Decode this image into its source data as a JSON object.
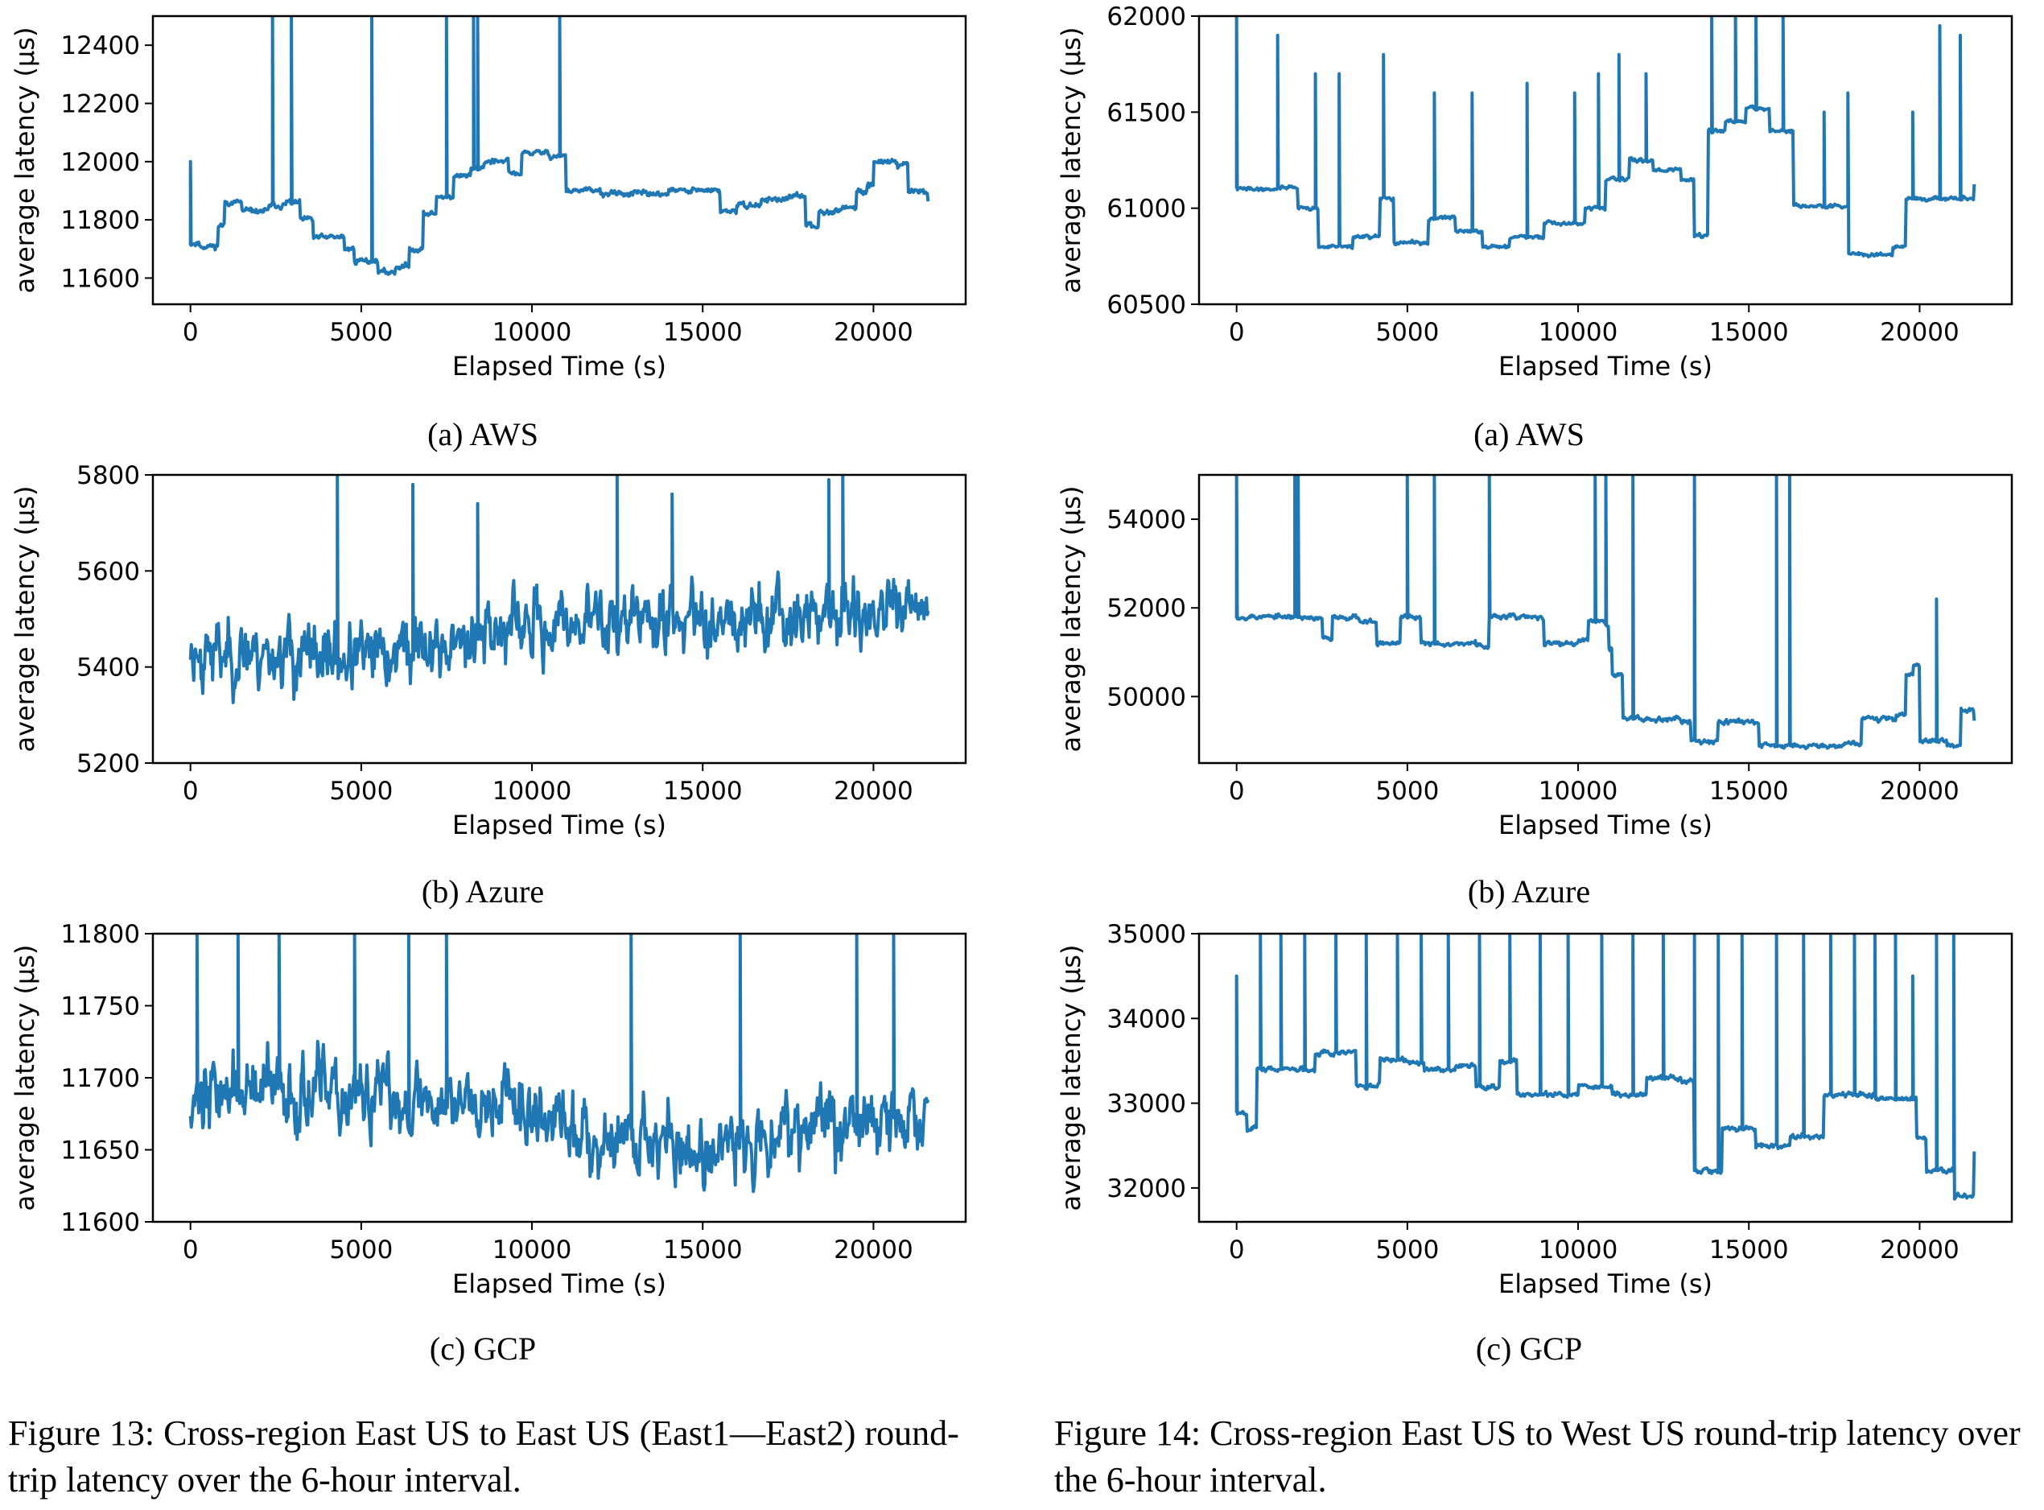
{
  "figures": [
    {
      "caption": "Figure 13: Cross-region East US to East US (East1—East2) round-trip latency over the 6-hour interval.",
      "panels": [
        {
          "subcaption": "(a) AWS"
        },
        {
          "subcaption": "(b) Azure"
        },
        {
          "subcaption": "(c) GCP"
        }
      ]
    },
    {
      "caption": "Figure 14: Cross-region East US to West US round-trip latency over the 6-hour interval.",
      "panels": [
        {
          "subcaption": "(a) AWS"
        },
        {
          "subcaption": "(b) Azure"
        },
        {
          "subcaption": "(c) GCP"
        }
      ]
    }
  ],
  "chart_data": [
    {
      "type": "line",
      "id": "f13a",
      "color": "#1f77b4",
      "xlabel": "Elapsed Time (s)",
      "ylabel": "average latency (µs)",
      "xlim": [
        -1100,
        22700
      ],
      "ylim": [
        11510,
        12500
      ],
      "xticks": [
        0,
        5000,
        10000,
        15000,
        20000
      ],
      "yticks": [
        11600,
        11800,
        12000,
        12200,
        12400
      ],
      "noise": 8,
      "seed": 11,
      "segments": [
        [
          0,
          11720
        ],
        [
          250,
          11710
        ],
        [
          800,
          11780
        ],
        [
          1000,
          11860
        ],
        [
          1500,
          11830
        ],
        [
          2300,
          11850
        ],
        [
          2800,
          11860
        ],
        [
          3200,
          11800
        ],
        [
          3600,
          11740
        ],
        [
          4200,
          11740
        ],
        [
          4500,
          11700
        ],
        [
          4800,
          11660
        ],
        [
          5500,
          11620
        ],
        [
          6000,
          11640
        ],
        [
          6400,
          11700
        ],
        [
          6800,
          11820
        ],
        [
          7200,
          11880
        ],
        [
          7700,
          11950
        ],
        [
          8200,
          11980
        ],
        [
          8600,
          12000
        ],
        [
          9300,
          11960
        ],
        [
          9700,
          12030
        ],
        [
          10500,
          12020
        ],
        [
          11000,
          11900
        ],
        [
          12000,
          11890
        ],
        [
          13000,
          11890
        ],
        [
          14000,
          11900
        ],
        [
          14800,
          11900
        ],
        [
          15500,
          11830
        ],
        [
          16000,
          11850
        ],
        [
          16700,
          11870
        ],
        [
          17500,
          11880
        ],
        [
          18000,
          11780
        ],
        [
          18400,
          11830
        ],
        [
          19000,
          11840
        ],
        [
          19500,
          11900
        ],
        [
          19800,
          11920
        ],
        [
          20000,
          12000
        ],
        [
          20700,
          11990
        ],
        [
          21000,
          11900
        ],
        [
          21600,
          11870
        ]
      ],
      "spikes": [
        [
          0,
          12000
        ],
        [
          2400,
          12500
        ],
        [
          2950,
          12500
        ],
        [
          5300,
          12500
        ],
        [
          7500,
          12500
        ],
        [
          8300,
          12500
        ],
        [
          8400,
          12500
        ],
        [
          10800,
          12500
        ]
      ]
    },
    {
      "type": "line",
      "id": "f13b",
      "color": "#1f77b4",
      "xlabel": "Elapsed Time (s)",
      "ylabel": "average latency (µs)",
      "xlim": [
        -1100,
        22700
      ],
      "ylim": [
        5200,
        5800
      ],
      "xticks": [
        0,
        5000,
        10000,
        15000,
        20000
      ],
      "yticks": [
        5200,
        5400,
        5600,
        5800
      ],
      "noise": 55,
      "seed": 23,
      "segments": [
        [
          0,
          5430
        ],
        [
          3000,
          5420
        ],
        [
          6000,
          5440
        ],
        [
          8000,
          5480
        ],
        [
          11000,
          5500
        ],
        [
          15000,
          5510
        ],
        [
          18000,
          5510
        ],
        [
          21600,
          5500
        ]
      ],
      "spikes": [
        [
          4300,
          5800
        ],
        [
          6500,
          5780
        ],
        [
          8400,
          5740
        ],
        [
          12500,
          5800
        ],
        [
          14100,
          5760
        ],
        [
          18700,
          5790
        ],
        [
          19100,
          5800
        ]
      ]
    },
    {
      "type": "line",
      "id": "f13c",
      "color": "#1f77b4",
      "xlabel": "Elapsed Time (s)",
      "ylabel": "average latency (µs)",
      "xlim": [
        -1100,
        22700
      ],
      "ylim": [
        11600,
        11800
      ],
      "xticks": [
        0,
        5000,
        10000,
        15000,
        20000
      ],
      "yticks": [
        11600,
        11650,
        11700,
        11750,
        11800
      ],
      "noise": 20,
      "seed": 37,
      "segments": [
        [
          0,
          11690
        ],
        [
          4000,
          11685
        ],
        [
          8000,
          11690
        ],
        [
          9500,
          11670
        ],
        [
          11000,
          11660
        ],
        [
          14000,
          11650
        ],
        [
          15800,
          11655
        ],
        [
          17000,
          11670
        ],
        [
          21600,
          11680
        ]
      ],
      "spikes": [
        [
          200,
          11800
        ],
        [
          1400,
          11800
        ],
        [
          2600,
          11800
        ],
        [
          4800,
          11800
        ],
        [
          6400,
          11800
        ],
        [
          7500,
          11800
        ],
        [
          12900,
          11800
        ],
        [
          16100,
          11800
        ],
        [
          19500,
          11800
        ],
        [
          20600,
          11800
        ]
      ]
    },
    {
      "type": "line",
      "id": "f14a",
      "color": "#1f77b4",
      "xlabel": "Elapsed Time (s)",
      "ylabel": "average latency (µs)",
      "xlim": [
        -1100,
        22700
      ],
      "ylim": [
        60500,
        62000
      ],
      "xticks": [
        0,
        5000,
        10000,
        15000,
        20000
      ],
      "yticks": [
        60500,
        61000,
        61500,
        62000
      ],
      "noise": 8,
      "seed": 41,
      "segments": [
        [
          0,
          61100
        ],
        [
          1200,
          61110
        ],
        [
          1800,
          61000
        ],
        [
          2400,
          60800
        ],
        [
          3400,
          60850
        ],
        [
          4200,
          61050
        ],
        [
          4600,
          60820
        ],
        [
          5600,
          60950
        ],
        [
          6400,
          60880
        ],
        [
          7200,
          60800
        ],
        [
          8000,
          60850
        ],
        [
          9000,
          60920
        ],
        [
          10200,
          61000
        ],
        [
          10800,
          61150
        ],
        [
          11500,
          61250
        ],
        [
          12200,
          61200
        ],
        [
          13000,
          61150
        ],
        [
          13400,
          60860
        ],
        [
          13800,
          61400
        ],
        [
          14300,
          61450
        ],
        [
          14900,
          61520
        ],
        [
          15600,
          61400
        ],
        [
          16300,
          61010
        ],
        [
          17700,
          61010
        ],
        [
          17900,
          60760
        ],
        [
          19200,
          60800
        ],
        [
          19600,
          61050
        ],
        [
          21600,
          61130
        ]
      ],
      "spikes": [
        [
          0,
          62000
        ],
        [
          1200,
          61900
        ],
        [
          2300,
          61700
        ],
        [
          3000,
          61700
        ],
        [
          4300,
          61800
        ],
        [
          5800,
          61600
        ],
        [
          6900,
          61600
        ],
        [
          8500,
          61650
        ],
        [
          9900,
          61600
        ],
        [
          10600,
          61700
        ],
        [
          11200,
          61800
        ],
        [
          12000,
          61700
        ],
        [
          13900,
          62000
        ],
        [
          14600,
          62000
        ],
        [
          15200,
          62000
        ],
        [
          16000,
          62000
        ],
        [
          17200,
          61500
        ],
        [
          17900,
          61600
        ],
        [
          19800,
          61500
        ],
        [
          20600,
          61950
        ],
        [
          21200,
          61900
        ]
      ]
    },
    {
      "type": "line",
      "id": "f14b",
      "color": "#1f77b4",
      "xlabel": "Elapsed Time (s)",
      "ylabel": "average latency (µs)",
      "xlim": [
        -1100,
        22700
      ],
      "ylim": [
        48500,
        55000
      ],
      "xticks": [
        0,
        5000,
        10000,
        15000,
        20000
      ],
      "yticks": [
        50000,
        52000,
        54000
      ],
      "noise": 45,
      "seed": 53,
      "segments": [
        [
          0,
          51800
        ],
        [
          2100,
          51750
        ],
        [
          2500,
          51300
        ],
        [
          2800,
          51800
        ],
        [
          3600,
          51700
        ],
        [
          4100,
          51200
        ],
        [
          4800,
          51800
        ],
        [
          5200,
          51750
        ],
        [
          5400,
          51200
        ],
        [
          7000,
          51150
        ],
        [
          7400,
          51800
        ],
        [
          8800,
          51750
        ],
        [
          9000,
          51200
        ],
        [
          10000,
          51250
        ],
        [
          10300,
          51700
        ],
        [
          10800,
          51600
        ],
        [
          10900,
          51100
        ],
        [
          11000,
          50500
        ],
        [
          11300,
          49500
        ],
        [
          13000,
          49450
        ],
        [
          13300,
          49000
        ],
        [
          14100,
          49450
        ],
        [
          15000,
          49400
        ],
        [
          15300,
          48900
        ],
        [
          17800,
          48950
        ],
        [
          18300,
          49500
        ],
        [
          19300,
          49600
        ],
        [
          19600,
          50500
        ],
        [
          19800,
          50700
        ],
        [
          20000,
          49000
        ],
        [
          20800,
          48900
        ],
        [
          21200,
          49700
        ],
        [
          21600,
          49450
        ]
      ],
      "spikes": [
        [
          0,
          55000
        ],
        [
          1700,
          55000
        ],
        [
          1800,
          55000
        ],
        [
          5000,
          55000
        ],
        [
          5800,
          55000
        ],
        [
          7400,
          55000
        ],
        [
          10500,
          55000
        ],
        [
          10800,
          55000
        ],
        [
          11600,
          55000
        ],
        [
          13400,
          55000
        ],
        [
          15800,
          55000
        ],
        [
          16200,
          55000
        ],
        [
          20500,
          52200
        ]
      ]
    },
    {
      "type": "line",
      "id": "f14c",
      "color": "#1f77b4",
      "xlabel": "Elapsed Time (s)",
      "ylabel": "average latency (µs)",
      "xlim": [
        -1100,
        22700
      ],
      "ylim": [
        31600,
        35000
      ],
      "xticks": [
        0,
        5000,
        10000,
        15000,
        20000
      ],
      "yticks": [
        32000,
        33000,
        34000,
        35000
      ],
      "noise": 25,
      "seed": 67,
      "segments": [
        [
          0,
          32900
        ],
        [
          300,
          32700
        ],
        [
          600,
          33400
        ],
        [
          2300,
          33600
        ],
        [
          3500,
          33200
        ],
        [
          4200,
          33500
        ],
        [
          5500,
          33400
        ],
        [
          6400,
          33450
        ],
        [
          7000,
          33200
        ],
        [
          7700,
          33500
        ],
        [
          8200,
          33100
        ],
        [
          10000,
          33200
        ],
        [
          11000,
          33100
        ],
        [
          12000,
          33300
        ],
        [
          13000,
          33250
        ],
        [
          13400,
          32200
        ],
        [
          14200,
          32700
        ],
        [
          15200,
          32500
        ],
        [
          16200,
          32600
        ],
        [
          17200,
          33100
        ],
        [
          18700,
          33050
        ],
        [
          19900,
          32600
        ],
        [
          20200,
          32200
        ],
        [
          21000,
          31900
        ],
        [
          21600,
          32400
        ]
      ],
      "spikes": [
        [
          0,
          31600
        ],
        [
          0,
          34500
        ],
        [
          700,
          35000
        ],
        [
          1300,
          35000
        ],
        [
          2000,
          35000
        ],
        [
          2900,
          35000
        ],
        [
          3800,
          35000
        ],
        [
          4700,
          35000
        ],
        [
          5400,
          35000
        ],
        [
          6200,
          35000
        ],
        [
          7100,
          35000
        ],
        [
          8000,
          35000
        ],
        [
          8900,
          35000
        ],
        [
          9700,
          35000
        ],
        [
          10700,
          35000
        ],
        [
          11600,
          35000
        ],
        [
          12500,
          35000
        ],
        [
          13400,
          35000
        ],
        [
          14100,
          35000
        ],
        [
          14800,
          35000
        ],
        [
          15800,
          35000
        ],
        [
          16600,
          35000
        ],
        [
          17400,
          35000
        ],
        [
          18100,
          35000
        ],
        [
          18700,
          35000
        ],
        [
          19300,
          35000
        ],
        [
          19800,
          34500
        ],
        [
          20500,
          35000
        ],
        [
          21000,
          35000
        ]
      ]
    }
  ]
}
